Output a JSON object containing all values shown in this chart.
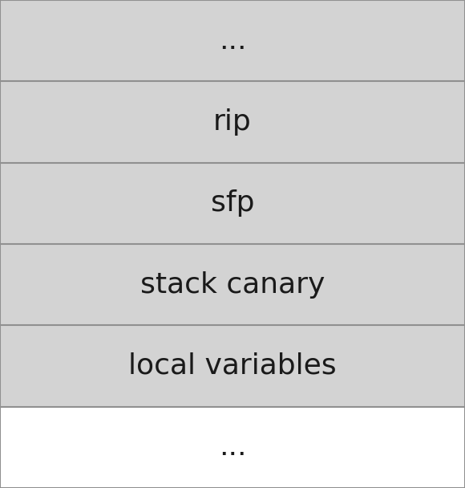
{
  "rows": [
    {
      "label": "...",
      "bg_color": "#d3d3d3",
      "text_color": "#1a1a1a"
    },
    {
      "label": "rip",
      "bg_color": "#d3d3d3",
      "text_color": "#1a1a1a"
    },
    {
      "label": "sfp",
      "bg_color": "#d3d3d3",
      "text_color": "#1a1a1a"
    },
    {
      "label": "stack canary",
      "bg_color": "#d3d3d3",
      "text_color": "#1a1a1a"
    },
    {
      "label": "local variables",
      "bg_color": "#d3d3d3",
      "text_color": "#1a1a1a"
    },
    {
      "label": "...",
      "bg_color": "#ffffff",
      "text_color": "#1a1a1a"
    }
  ],
  "border_color": "#909090",
  "border_linewidth": 1.5,
  "font_size": 26,
  "fig_bg_color": "#ffffff",
  "outer_border_color": "#909090",
  "outer_border_linewidth": 1.5
}
